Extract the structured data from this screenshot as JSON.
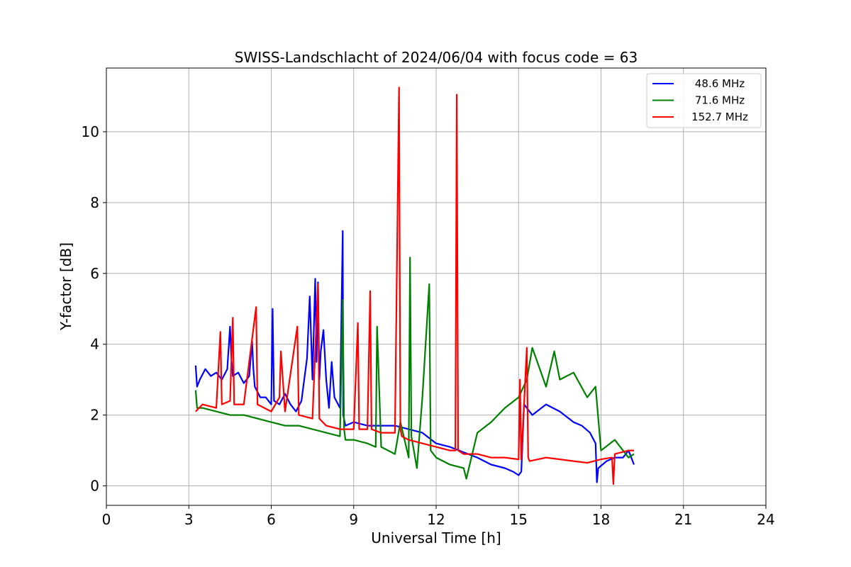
{
  "chart_data": {
    "type": "line",
    "title": "SWISS-Landschlacht of 2024/06/04 with focus code = 63",
    "xlabel": "Universal Time [h]",
    "ylabel": "Y-factor [dB]",
    "xlim": [
      0,
      24
    ],
    "ylim": [
      -0.55,
      11.8
    ],
    "xticks": [
      0,
      3,
      6,
      9,
      12,
      15,
      18,
      21,
      24
    ],
    "yticks": [
      0,
      2,
      4,
      6,
      8,
      10
    ],
    "grid": true,
    "legend_position": "top-right",
    "series": [
      {
        "name": "48.6 MHz",
        "color": "#0000ff",
        "x": [
          3.25,
          3.3,
          3.4,
          3.6,
          3.8,
          4.0,
          4.2,
          4.4,
          4.5,
          4.55,
          4.6,
          4.8,
          5.0,
          5.2,
          5.3,
          5.35,
          5.4,
          5.6,
          5.8,
          6.0,
          6.05,
          6.1,
          6.3,
          6.5,
          6.7,
          6.9,
          7.1,
          7.3,
          7.4,
          7.45,
          7.5,
          7.6,
          7.65,
          7.7,
          7.75,
          7.8,
          7.9,
          8.0,
          8.1,
          8.2,
          8.3,
          8.5,
          8.6,
          8.62,
          8.7,
          9.0,
          9.5,
          10.0,
          10.5,
          11.0,
          11.5,
          12.0,
          12.5,
          13.0,
          13.5,
          14.0,
          14.5,
          14.8,
          15.0,
          15.1,
          15.2,
          15.5,
          16.0,
          16.5,
          17.0,
          17.3,
          17.6,
          17.8,
          17.85,
          17.9,
          18.2,
          18.5,
          18.8,
          19.0,
          19.2
        ],
        "values": [
          3.4,
          2.8,
          3.0,
          3.3,
          3.1,
          3.2,
          3.0,
          3.3,
          4.5,
          3.6,
          3.1,
          3.2,
          2.9,
          3.1,
          4.1,
          3.3,
          2.8,
          2.5,
          2.5,
          2.3,
          5.0,
          2.4,
          2.3,
          2.6,
          2.3,
          2.1,
          2.4,
          3.6,
          5.35,
          4.2,
          3.0,
          5.85,
          3.5,
          5.75,
          3.0,
          3.8,
          4.4,
          3.0,
          2.2,
          3.5,
          2.5,
          2.2,
          7.2,
          2.0,
          1.7,
          1.8,
          1.7,
          1.7,
          1.7,
          1.6,
          1.5,
          1.2,
          1.1,
          0.95,
          0.8,
          0.6,
          0.5,
          0.4,
          0.3,
          0.4,
          2.3,
          2.0,
          2.3,
          2.1,
          1.8,
          1.7,
          1.5,
          1.2,
          0.1,
          0.5,
          0.7,
          0.8,
          0.8,
          1.0,
          0.6
        ]
      },
      {
        "name": "71.6 MHz",
        "color": "#008000",
        "x": [
          3.25,
          3.3,
          3.5,
          4.0,
          4.5,
          5.0,
          5.5,
          6.0,
          6.5,
          7.0,
          7.5,
          8.0,
          8.5,
          8.6,
          8.65,
          8.7,
          9.0,
          9.5,
          9.8,
          9.85,
          10.0,
          10.5,
          10.7,
          11.0,
          11.05,
          11.1,
          11.3,
          11.5,
          11.75,
          11.8,
          12.0,
          12.5,
          13.0,
          13.1,
          13.5,
          14.0,
          14.5,
          15.0,
          15.3,
          15.5,
          16.0,
          16.3,
          16.5,
          17.0,
          17.5,
          17.8,
          18.0,
          18.5,
          19.0,
          19.2
        ],
        "values": [
          2.7,
          2.2,
          2.2,
          2.1,
          2.0,
          2.0,
          1.9,
          1.8,
          1.7,
          1.7,
          1.6,
          1.5,
          1.4,
          5.25,
          1.6,
          1.3,
          1.3,
          1.2,
          1.1,
          4.5,
          1.1,
          0.9,
          1.8,
          0.8,
          6.45,
          1.4,
          0.5,
          2.5,
          5.7,
          1.0,
          0.8,
          0.6,
          0.5,
          0.2,
          1.5,
          1.8,
          2.2,
          2.5,
          3.0,
          3.9,
          2.8,
          3.8,
          3.0,
          3.2,
          2.5,
          2.8,
          1.0,
          1.3,
          0.8,
          0.9
        ]
      },
      {
        "name": "152.7 MHz",
        "color": "#ff0000",
        "x": [
          3.25,
          3.5,
          4.0,
          4.15,
          4.2,
          4.5,
          4.6,
          4.65,
          5.0,
          5.45,
          5.5,
          6.0,
          6.3,
          6.35,
          6.5,
          6.95,
          7.0,
          7.5,
          7.7,
          7.75,
          8.0,
          8.5,
          9.0,
          9.15,
          9.2,
          9.5,
          9.6,
          9.65,
          10.0,
          10.5,
          10.65,
          10.7,
          10.75,
          11.0,
          11.5,
          12.0,
          12.5,
          12.7,
          12.75,
          12.8,
          13.0,
          13.5,
          14.0,
          14.5,
          15.0,
          15.05,
          15.1,
          15.3,
          15.35,
          15.4,
          16.0,
          16.5,
          17.0,
          17.5,
          18.0,
          18.4,
          18.45,
          18.5,
          19.0,
          19.2
        ],
        "values": [
          2.1,
          2.3,
          2.2,
          4.35,
          2.3,
          2.4,
          4.75,
          2.3,
          2.3,
          5.05,
          2.3,
          2.1,
          2.5,
          3.8,
          2.1,
          4.5,
          2.0,
          1.9,
          5.7,
          1.9,
          1.7,
          1.6,
          1.6,
          4.6,
          1.6,
          1.6,
          5.5,
          1.6,
          1.5,
          1.5,
          11.25,
          1.6,
          1.4,
          1.3,
          1.2,
          1.1,
          1.0,
          1.0,
          11.05,
          1.0,
          0.9,
          0.9,
          0.8,
          0.8,
          0.75,
          3.0,
          0.75,
          3.9,
          0.8,
          0.7,
          0.8,
          0.75,
          0.7,
          0.65,
          0.75,
          0.8,
          0.05,
          0.9,
          1.0,
          1.0
        ]
      }
    ]
  }
}
